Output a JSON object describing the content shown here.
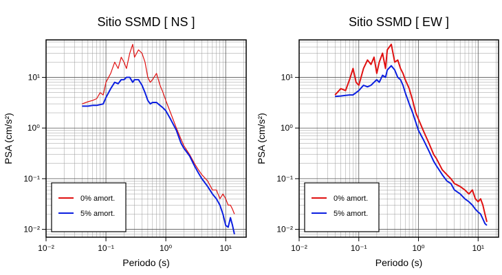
{
  "chart_data": [
    {
      "type": "line",
      "title": "Sitio SSMD [ NS ]",
      "x_label": "Periodo (s)",
      "y_label": "PSA (cm/s²)",
      "log_x": true,
      "log_y": true,
      "grid": true,
      "minor_grid": true,
      "legend": "bottom-left",
      "xlim": [
        0.01,
        22
      ],
      "ylim": [
        0.007,
        55
      ],
      "xticks": [
        {
          "value": 0.01,
          "label": "10⁻²"
        },
        {
          "value": 0.1,
          "label": "10⁻¹"
        },
        {
          "value": 1,
          "label": "10⁰"
        },
        {
          "value": 10,
          "label": "10¹"
        }
      ],
      "yticks": [
        {
          "value": 0.01,
          "label": "10⁻²"
        },
        {
          "value": 0.1,
          "label": "10⁻¹"
        },
        {
          "value": 1,
          "label": "10⁰"
        },
        {
          "value": 10,
          "label": "10¹"
        }
      ],
      "x": [
        0.04,
        0.05,
        0.06,
        0.07,
        0.08,
        0.09,
        0.1,
        0.12,
        0.14,
        0.16,
        0.18,
        0.2,
        0.22,
        0.25,
        0.28,
        0.3,
        0.35,
        0.4,
        0.45,
        0.5,
        0.55,
        0.6,
        0.7,
        0.8,
        0.9,
        1.0,
        1.2,
        1.5,
        1.8,
        2,
        2.5,
        3,
        3.5,
        4,
        5,
        6,
        7,
        8,
        9,
        10,
        11,
        12,
        13,
        14
      ],
      "series": [
        {
          "name": "0% amort.",
          "color": "#e01010",
          "width": 1.2,
          "values": [
            3.0,
            3.3,
            3.5,
            3.8,
            5,
            4.5,
            8,
            12,
            20,
            15,
            25,
            20,
            15,
            30,
            45,
            25,
            35,
            30,
            20,
            10,
            8,
            9,
            12,
            7,
            5,
            3.5,
            2,
            1,
            0.6,
            0.45,
            0.3,
            0.2,
            0.15,
            0.12,
            0.09,
            0.06,
            0.06,
            0.04,
            0.05,
            0.04,
            0.03,
            0.03,
            0.025,
            0.02
          ]
        },
        {
          "name": "5% amort.",
          "color": "#0a1ee0",
          "width": 2,
          "values": [
            2.7,
            2.7,
            2.8,
            2.8,
            2.9,
            3.0,
            4,
            6,
            8,
            7.5,
            9,
            9,
            10,
            10,
            8,
            9,
            9,
            7,
            5,
            3.5,
            3,
            3.2,
            3.2,
            2.8,
            2.5,
            2.2,
            1.5,
            0.9,
            0.5,
            0.4,
            0.28,
            0.18,
            0.13,
            0.1,
            0.07,
            0.05,
            0.04,
            0.03,
            0.02,
            0.012,
            0.011,
            0.017,
            0.012,
            0.008
          ]
        }
      ]
    },
    {
      "type": "line",
      "title": "Sitio SSMD [ EW ]",
      "x_label": "Periodo (s)",
      "y_label": "PSA (cm/s²)",
      "log_x": true,
      "log_y": true,
      "grid": true,
      "minor_grid": true,
      "legend": "bottom-left",
      "xlim": [
        0.01,
        22
      ],
      "ylim": [
        0.007,
        55
      ],
      "xticks": [
        {
          "value": 0.01,
          "label": "10⁻²"
        },
        {
          "value": 0.1,
          "label": "10⁻¹"
        },
        {
          "value": 1,
          "label": "10⁰"
        },
        {
          "value": 10,
          "label": "10¹"
        }
      ],
      "yticks": [
        {
          "value": 0.01,
          "label": "10⁻²"
        },
        {
          "value": 0.1,
          "label": "10⁻¹"
        },
        {
          "value": 1,
          "label": "10⁰"
        },
        {
          "value": 10,
          "label": "10¹"
        }
      ],
      "x": [
        0.04,
        0.05,
        0.06,
        0.07,
        0.08,
        0.09,
        0.1,
        0.12,
        0.14,
        0.16,
        0.18,
        0.2,
        0.22,
        0.25,
        0.28,
        0.3,
        0.35,
        0.4,
        0.45,
        0.5,
        0.55,
        0.6,
        0.7,
        0.8,
        0.9,
        1.0,
        1.2,
        1.5,
        1.8,
        2,
        2.5,
        3,
        3.5,
        4,
        5,
        6,
        7,
        8,
        9,
        10,
        11,
        12,
        13,
        14
      ],
      "series": [
        {
          "name": "0% amort.",
          "color": "#e01010",
          "width": 2,
          "values": [
            4.5,
            6,
            5.5,
            9,
            15,
            8,
            7,
            15,
            22,
            18,
            25,
            12,
            20,
            30,
            15,
            35,
            45,
            20,
            22,
            15,
            12,
            9,
            6,
            3.5,
            2,
            1.5,
            0.9,
            0.5,
            0.3,
            0.25,
            0.15,
            0.12,
            0.1,
            0.08,
            0.07,
            0.06,
            0.05,
            0.06,
            0.04,
            0.035,
            0.04,
            0.03,
            0.02,
            0.014
          ]
        },
        {
          "name": "5% amort.",
          "color": "#0a1ee0",
          "width": 2,
          "values": [
            4.2,
            4.3,
            4.4,
            4.5,
            4.5,
            5,
            5.5,
            7,
            6.5,
            7,
            8,
            9,
            8,
            11,
            10,
            14,
            17,
            14,
            10,
            9,
            7,
            5,
            3,
            2,
            1.3,
            0.9,
            0.6,
            0.35,
            0.22,
            0.18,
            0.12,
            0.09,
            0.08,
            0.06,
            0.05,
            0.04,
            0.035,
            0.03,
            0.025,
            0.022,
            0.02,
            0.016,
            0.013,
            0.012
          ]
        }
      ]
    }
  ]
}
